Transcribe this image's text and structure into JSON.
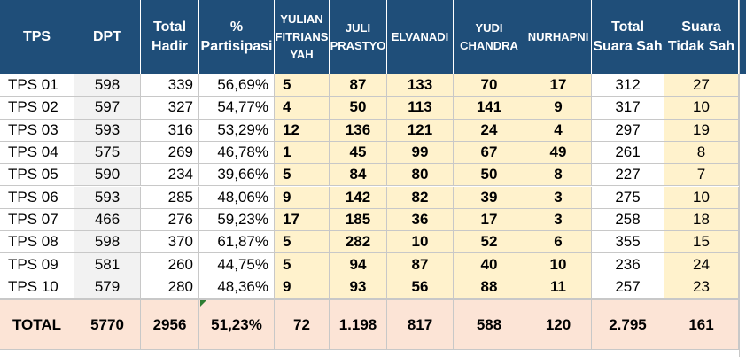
{
  "headers": {
    "tps": "TPS",
    "dpt": "DPT",
    "total_hadir": "Total Hadir",
    "partisipasi": "% Partisipasi",
    "yulian": "YULIAN FITRIANS YAH",
    "juli": "JULI PRASTYO",
    "elvanadi": "ELVANADI",
    "yudi": "YUDI CHANDRA",
    "nurhapni": "NURHAPNI",
    "suara_sah": "Total Suara Sah",
    "tidak_sah": "Suara Tidak Sah"
  },
  "rows": [
    {
      "tps": "TPS 01",
      "dpt": "598",
      "hadir": "339",
      "pct": "56,69%",
      "yulian": "5",
      "juli": "87",
      "elvanadi": "133",
      "yudi": "70",
      "nurhapni": "17",
      "sah": "312",
      "tidak": "27"
    },
    {
      "tps": "TPS 02",
      "dpt": "597",
      "hadir": "327",
      "pct": "54,77%",
      "yulian": "4",
      "juli": "50",
      "elvanadi": "113",
      "yudi": "141",
      "nurhapni": "9",
      "sah": "317",
      "tidak": "10"
    },
    {
      "tps": "TPS 03",
      "dpt": "593",
      "hadir": "316",
      "pct": "53,29%",
      "yulian": "12",
      "juli": "136",
      "elvanadi": "121",
      "yudi": "24",
      "nurhapni": "4",
      "sah": "297",
      "tidak": "19"
    },
    {
      "tps": "TPS 04",
      "dpt": "575",
      "hadir": "269",
      "pct": "46,78%",
      "yulian": "1",
      "juli": "45",
      "elvanadi": "99",
      "yudi": "67",
      "nurhapni": "49",
      "sah": "261",
      "tidak": "8"
    },
    {
      "tps": "TPS 05",
      "dpt": "590",
      "hadir": "234",
      "pct": "39,66%",
      "yulian": "5",
      "juli": "84",
      "elvanadi": "80",
      "yudi": "50",
      "nurhapni": "8",
      "sah": "227",
      "tidak": "7"
    },
    {
      "tps": "TPS 06",
      "dpt": "593",
      "hadir": "285",
      "pct": "48,06%",
      "yulian": "9",
      "juli": "142",
      "elvanadi": "82",
      "yudi": "39",
      "nurhapni": "3",
      "sah": "275",
      "tidak": "10"
    },
    {
      "tps": "TPS 07",
      "dpt": "466",
      "hadir": "276",
      "pct": "59,23%",
      "yulian": "17",
      "juli": "185",
      "elvanadi": "36",
      "yudi": "17",
      "nurhapni": "3",
      "sah": "258",
      "tidak": "18"
    },
    {
      "tps": "TPS 08",
      "dpt": "598",
      "hadir": "370",
      "pct": "61,87%",
      "yulian": "5",
      "juli": "282",
      "elvanadi": "10",
      "yudi": "52",
      "nurhapni": "6",
      "sah": "355",
      "tidak": "15"
    },
    {
      "tps": "TPS 09",
      "dpt": "581",
      "hadir": "260",
      "pct": "44,75%",
      "yulian": "5",
      "juli": "94",
      "elvanadi": "87",
      "yudi": "40",
      "nurhapni": "10",
      "sah": "236",
      "tidak": "24"
    },
    {
      "tps": "TPS 10",
      "dpt": "579",
      "hadir": "280",
      "pct": "48,36%",
      "yulian": "9",
      "juli": "93",
      "elvanadi": "56",
      "yudi": "88",
      "nurhapni": "11",
      "sah": "257",
      "tidak": "23"
    }
  ],
  "total": {
    "tps": "TOTAL",
    "dpt": "5770",
    "hadir": "2956",
    "pct": "51,23%",
    "yulian": "72",
    "juli": "1.198",
    "elvanadi": "817",
    "yudi": "588",
    "nurhapni": "120",
    "sah": "2.795",
    "tidak": "161"
  },
  "colors": {
    "header_bg": "#1f4e79",
    "candidate_bg": "#fff2cc",
    "dpt_bg": "#f2f2f2",
    "total_bg": "#fce4d6",
    "comment_marker": "#2e7d32"
  }
}
